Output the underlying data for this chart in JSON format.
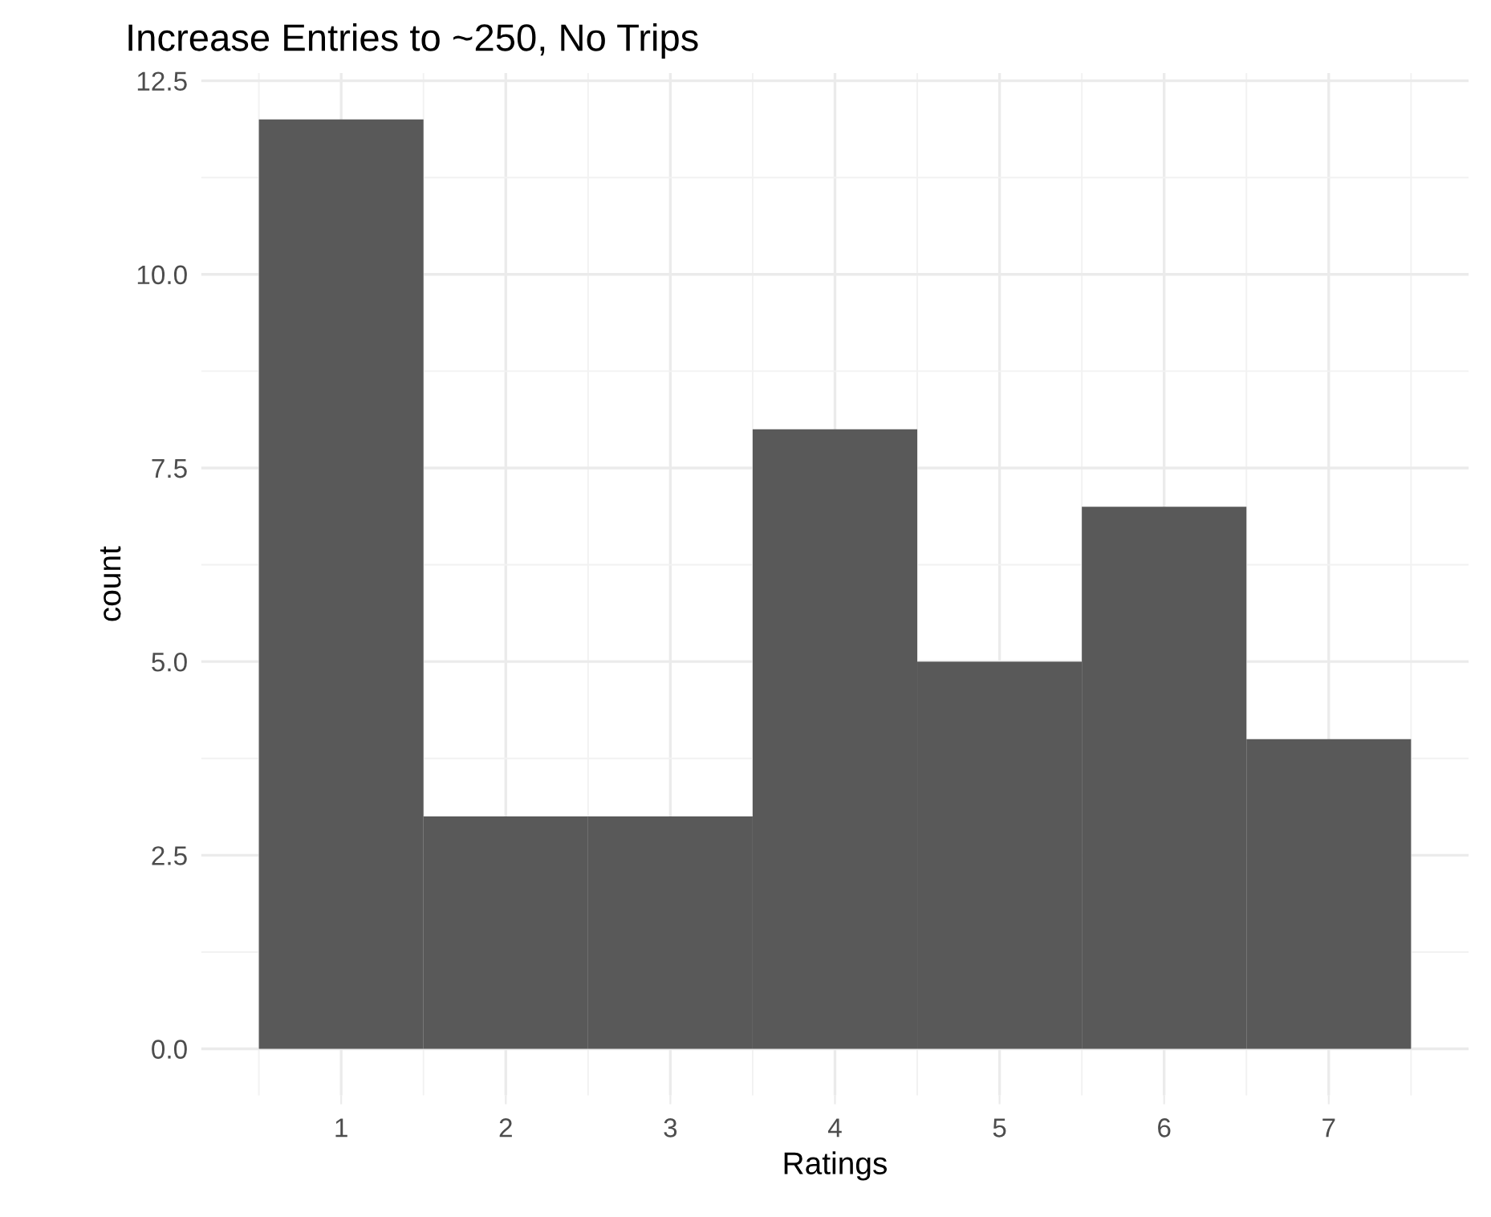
{
  "chart_data": {
    "type": "histogram",
    "title": "Increase Entries to ~250, No Trips",
    "xlabel": "Ratings",
    "ylabel": "count",
    "bins": [
      0.5,
      1.5,
      2.5,
      3.5,
      4.5,
      5.5,
      6.5,
      7.5
    ],
    "values": [
      12,
      3,
      3,
      8,
      5,
      7,
      4
    ],
    "color": "#595959",
    "xlim": [
      0.15,
      7.85
    ],
    "xticks": [
      1,
      2,
      3,
      4,
      5,
      6,
      7
    ],
    "ylim": [
      -0.6,
      12.6
    ],
    "yticks": [
      {
        "value": 0,
        "label": "0.0"
      },
      {
        "value": 2.5,
        "label": "2.5"
      },
      {
        "value": 5,
        "label": "5.0"
      },
      {
        "value": 7.5,
        "label": "7.5"
      },
      {
        "value": 10,
        "label": "10.0"
      },
      {
        "value": 12.5,
        "label": "12.5"
      }
    ],
    "grid": true
  }
}
